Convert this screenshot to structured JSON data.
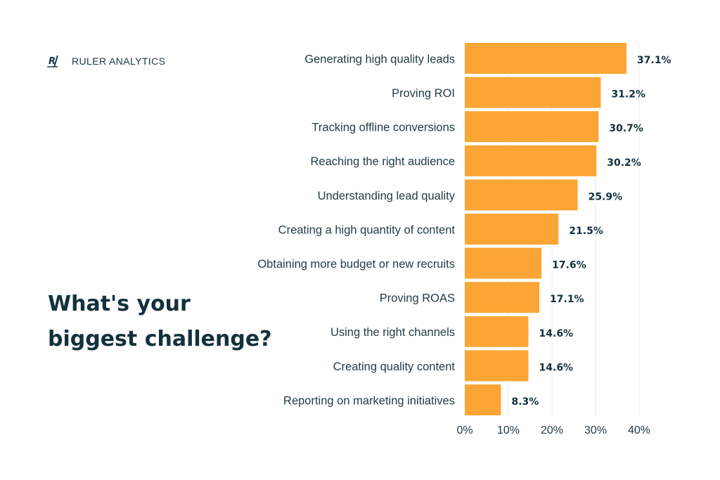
{
  "brand": {
    "name": "RULER ANALYTICS",
    "mark": "R"
  },
  "heading": {
    "line1": "What's your",
    "line2": "biggest challenge?"
  },
  "colors": {
    "bar": "#fba634",
    "text": "#13313d",
    "grid": "#ebebeb"
  },
  "chart_data": {
    "type": "bar",
    "orientation": "horizontal",
    "title": "What's your biggest challenge?",
    "xlabel": "",
    "ylabel": "",
    "xlim": [
      0,
      40
    ],
    "grid": true,
    "categories": [
      "Generating high quality leads",
      "Proving ROI",
      "Tracking offline conversions",
      "Reaching the right audience",
      "Understanding lead quality",
      "Creating a high quantity of content",
      "Obtaining more budget or new recruits",
      "Proving ROAS",
      "Using the right channels",
      "Creating quality content",
      "Reporting on marketing initiatives"
    ],
    "values": [
      37.1,
      31.2,
      30.7,
      30.2,
      25.9,
      21.5,
      17.6,
      17.1,
      14.6,
      14.6,
      8.3
    ],
    "value_labels": [
      "37.1%",
      "31.2%",
      "30.7%",
      "30.2%",
      "25.9%",
      "21.5%",
      "17.6%",
      "17.1%",
      "14.6%",
      "14.6%",
      "8.3%"
    ],
    "ticks": [
      0,
      10,
      20,
      30,
      40
    ],
    "tick_labels": [
      "0%",
      "10%",
      "20%",
      "30%",
      "40%"
    ]
  }
}
